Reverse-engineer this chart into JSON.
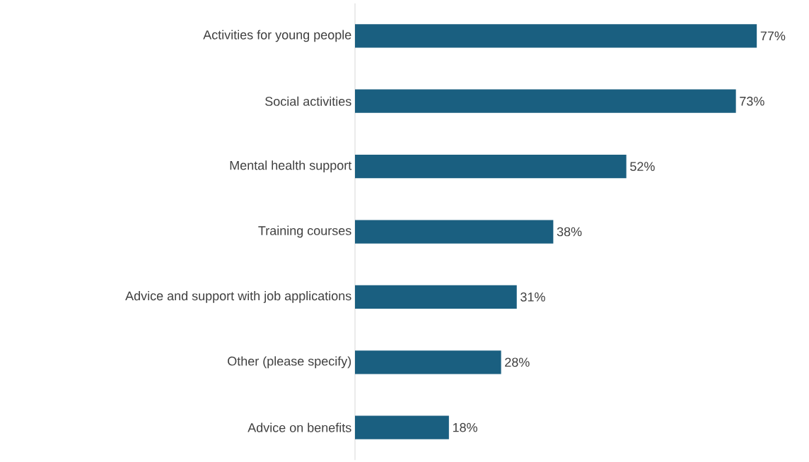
{
  "chart_data": {
    "type": "bar",
    "orientation": "horizontal",
    "categories": [
      "Activities for young people",
      "Social activities",
      "Mental health support",
      "Training courses",
      "Advice and support with job applications",
      "Other (please specify)",
      "Advice on benefits"
    ],
    "values": [
      77,
      73,
      52,
      38,
      31,
      28,
      18
    ],
    "value_labels": [
      "77%",
      "73%",
      "52%",
      "38%",
      "31%",
      "28%",
      "18%"
    ],
    "color": "#1a5f80"
  }
}
